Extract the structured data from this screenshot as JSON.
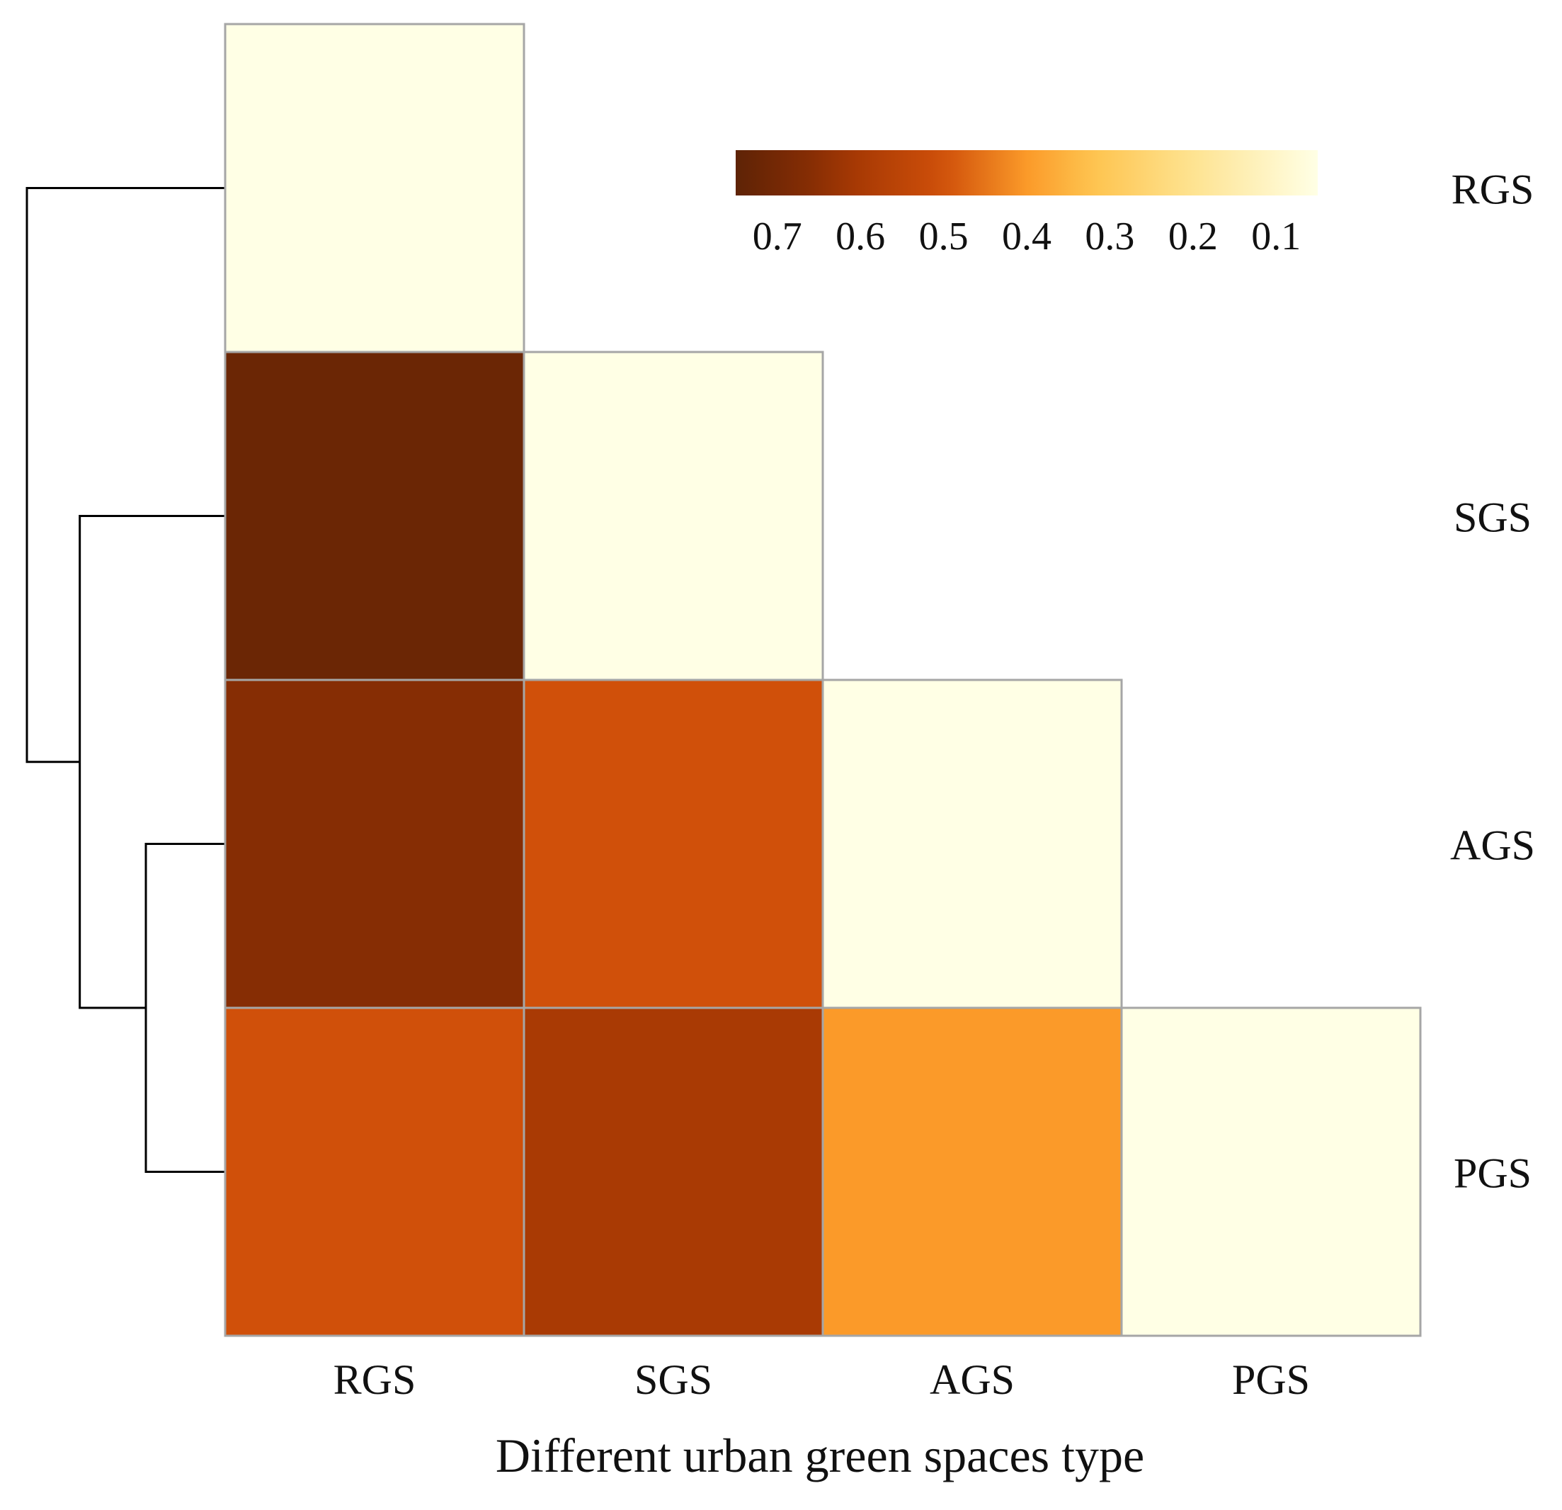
{
  "chart_data": {
    "type": "heatmap",
    "layout": "lower-triangle",
    "categories": [
      "RGS",
      "SGS",
      "AGS",
      "PGS"
    ],
    "row_labels": [
      "RGS",
      "SGS",
      "AGS",
      "PGS"
    ],
    "column_labels": [
      "RGS",
      "SGS",
      "AGS",
      "PGS"
    ],
    "xlabel": "Different urban green spaces type",
    "ylabel": "",
    "cells": [
      {
        "row": "RGS",
        "col": "RGS",
        "value": 0.05
      },
      {
        "row": "SGS",
        "col": "RGS",
        "value": 0.72
      },
      {
        "row": "SGS",
        "col": "SGS",
        "value": 0.05
      },
      {
        "row": "AGS",
        "col": "RGS",
        "value": 0.66
      },
      {
        "row": "AGS",
        "col": "SGS",
        "value": 0.5
      },
      {
        "row": "AGS",
        "col": "AGS",
        "value": 0.05
      },
      {
        "row": "PGS",
        "col": "RGS",
        "value": 0.5
      },
      {
        "row": "PGS",
        "col": "SGS",
        "value": 0.6
      },
      {
        "row": "PGS",
        "col": "AGS",
        "value": 0.4
      },
      {
        "row": "PGS",
        "col": "PGS",
        "value": 0.05
      }
    ],
    "colorbar": {
      "ticks": [
        "0.7",
        "0.6",
        "0.5",
        "0.4",
        "0.3",
        "0.2",
        "0.1"
      ],
      "range": [
        0.05,
        0.75
      ],
      "orientation": "horizontal",
      "direction": "descending",
      "placement": "top-right"
    },
    "colormap": {
      "stops": [
        {
          "value": 0.05,
          "color": "#ffffe5"
        },
        {
          "value": 0.2,
          "color": "#fee391"
        },
        {
          "value": 0.32,
          "color": "#fec44f"
        },
        {
          "value": 0.4,
          "color": "#fb9a29"
        },
        {
          "value": 0.5,
          "color": "#d0500a"
        },
        {
          "value": 0.6,
          "color": "#a93a04"
        },
        {
          "value": 0.66,
          "color": "#862d04"
        },
        {
          "value": 0.75,
          "color": "#5e2306"
        }
      ]
    },
    "dendrogram": {
      "side": "left",
      "merges": [
        {
          "left": "AGS",
          "right": "PGS",
          "height": 0.3
        },
        {
          "left": "SGS",
          "right": "AGS+PGS",
          "height": 0.55
        },
        {
          "left": "RGS",
          "right": "SGS+AGS+PGS",
          "height": 0.75
        }
      ]
    }
  }
}
